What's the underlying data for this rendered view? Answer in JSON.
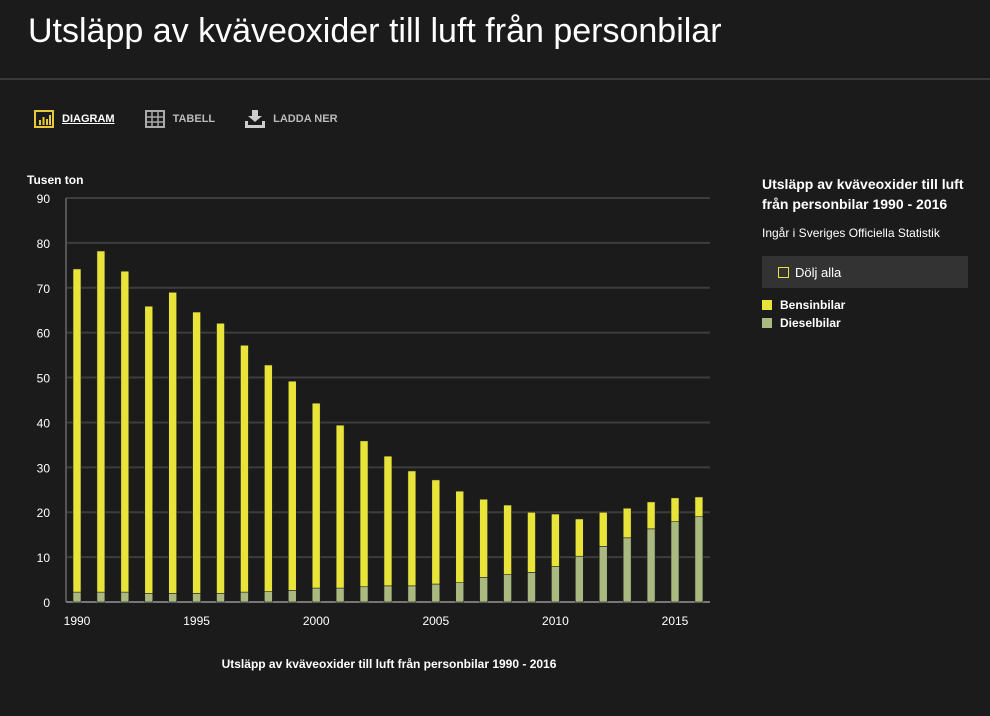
{
  "header": {
    "title": "Utsläpp av kväveoxider till luft från personbilar"
  },
  "tabs": [
    {
      "label": "DIAGRAM",
      "icon": "bar-chart-icon",
      "active": true
    },
    {
      "label": "TABELL",
      "icon": "table-icon",
      "active": false
    },
    {
      "label": "LADDA NER",
      "icon": "download-icon",
      "active": false
    }
  ],
  "sidebar": {
    "title": "Utsläpp av kväveoxider till luft från personbilar 1990 - 2016",
    "subtitle": "Ingår i Sveriges Officiella Statistik",
    "hide_all": "Dölj alla"
  },
  "chart_data": {
    "type": "bar",
    "stacked": true,
    "title": "Utsläpp av kväveoxider till luft från personbilar 1990 - 2016",
    "ylabel": "Tusen ton",
    "xlabel": "",
    "ylim": [
      0,
      90
    ],
    "yticks": [
      0,
      10,
      20,
      30,
      40,
      50,
      60,
      70,
      80,
      90
    ],
    "xticks": [
      1990,
      1995,
      2000,
      2005,
      2010,
      2015
    ],
    "grid": true,
    "legend": "right",
    "categories": [
      1990,
      1991,
      1992,
      1993,
      1994,
      1995,
      1996,
      1997,
      1998,
      1999,
      2000,
      2001,
      2002,
      2003,
      2004,
      2005,
      2006,
      2007,
      2008,
      2009,
      2010,
      2011,
      2012,
      2013,
      2014,
      2015,
      2016
    ],
    "series": [
      {
        "name": "Dieselbilar",
        "color": "#a9b97f",
        "values": [
          2.2,
          2.2,
          2.2,
          1.9,
          1.9,
          1.9,
          1.9,
          2.2,
          2.3,
          2.6,
          3.1,
          3.1,
          3.4,
          3.6,
          3.6,
          4.0,
          4.3,
          5.5,
          6.1,
          6.6,
          7.9,
          10.2,
          12.4,
          14.3,
          16.3,
          17.9,
          19.0
        ]
      },
      {
        "name": "Bensinbilar",
        "color": "#e8e43a",
        "values": [
          72.0,
          76.0,
          71.5,
          64.0,
          67.1,
          62.7,
          60.2,
          55.0,
          50.5,
          46.6,
          41.2,
          36.3,
          32.5,
          28.9,
          25.6,
          23.2,
          20.4,
          17.4,
          15.5,
          13.4,
          11.7,
          8.3,
          7.6,
          6.6,
          6.0,
          5.3,
          4.4
        ]
      }
    ]
  }
}
